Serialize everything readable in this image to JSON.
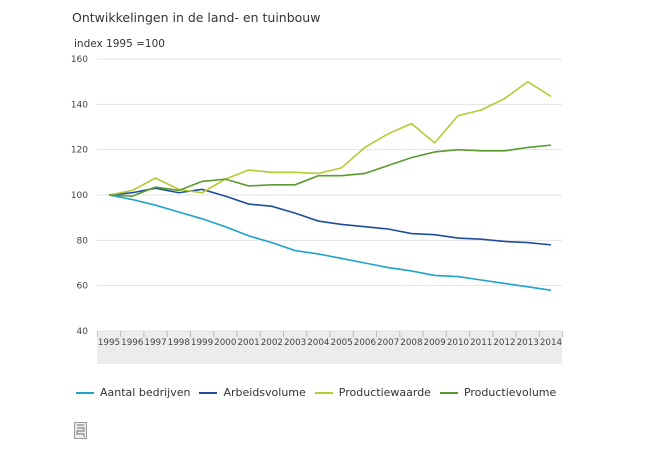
{
  "chart_data": {
    "type": "line",
    "title": "Ontwikkelingen in de land- en tuinbouw",
    "ylabel": "index 1995 =100",
    "xlabel": "",
    "ylim": [
      40,
      160
    ],
    "yticks": [
      "40",
      "60",
      "80",
      "100",
      "120",
      "140",
      "160"
    ],
    "grid": true,
    "legend": "bottom",
    "x": [
      "1995",
      "1996",
      "1997",
      "1998",
      "1999",
      "2000",
      "2001",
      "2002",
      "2003",
      "2004",
      "2005",
      "2006",
      "2007",
      "2008",
      "2009",
      "2010",
      "2011",
      "2012",
      "2013",
      "2014"
    ],
    "series": [
      {
        "name": "Aantal bedrijven",
        "color": "#1fa3c9",
        "values": [
          100,
          98,
          95.5,
          92.5,
          89.5,
          86,
          82,
          79,
          75.5,
          74,
          72,
          70,
          68,
          66.5,
          64.5,
          64,
          62.5,
          61,
          59.5,
          58
        ]
      },
      {
        "name": "Arbeidsvolume",
        "color": "#1f4e9a",
        "values": [
          100,
          101,
          103,
          101,
          102.5,
          99.5,
          96,
          95,
          92,
          88.5,
          87,
          86,
          85,
          83,
          82.5,
          81,
          80.5,
          79.5,
          79,
          78
        ]
      },
      {
        "name": "Productiewaarde",
        "color": "#b7c934",
        "values": [
          100,
          102,
          107.5,
          102.5,
          101,
          107,
          111,
          110,
          110,
          109.5,
          112,
          121,
          127,
          131.5,
          123,
          135,
          137.5,
          142.5,
          150,
          143.5
        ]
      },
      {
        "name": "Productievolume",
        "color": "#5b9b2f",
        "values": [
          100,
          99.5,
          103.5,
          102,
          106,
          107,
          104,
          104.5,
          104.5,
          108.5,
          108.5,
          109.5,
          113,
          116.5,
          119,
          120,
          119.5,
          119.5,
          121,
          122
        ]
      }
    ]
  }
}
